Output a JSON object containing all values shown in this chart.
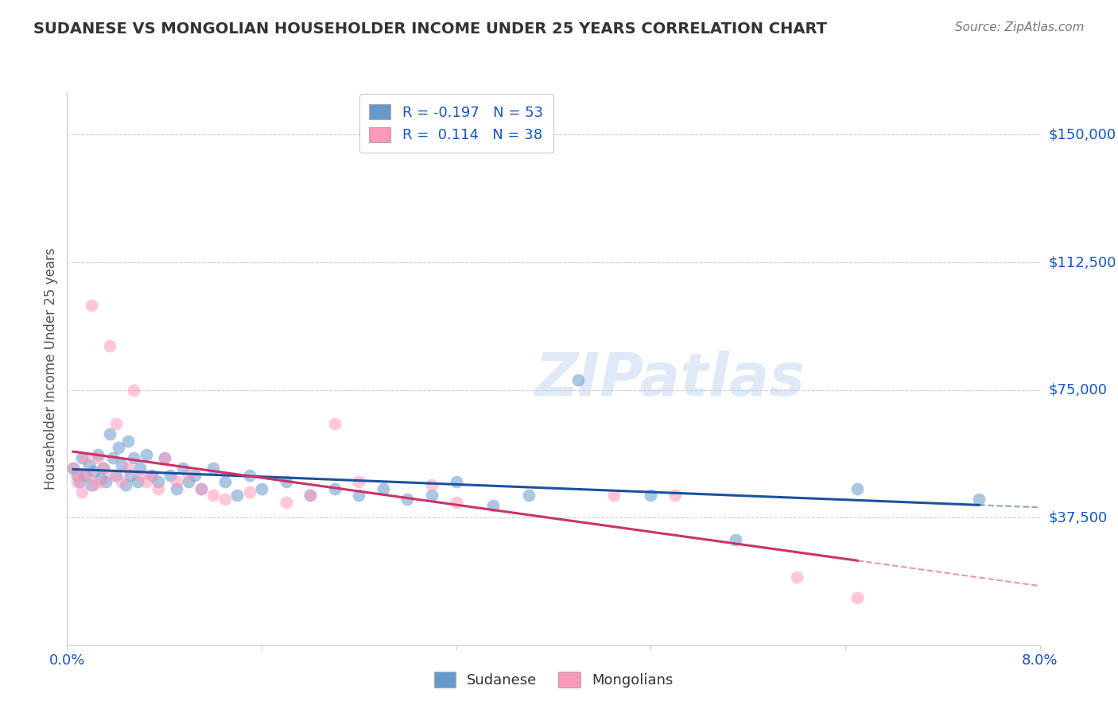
{
  "title": "SUDANESE VS MONGOLIAN HOUSEHOLDER INCOME UNDER 25 YEARS CORRELATION CHART",
  "source": "Source: ZipAtlas.com",
  "ylabel": "Householder Income Under 25 years",
  "background_color": "#ffffff",
  "watermark": "ZIPatlas",
  "legend": {
    "sudanese_label": "Sudanese",
    "mongolian_label": "Mongolians",
    "r_sudanese": -0.197,
    "n_sudanese": 53,
    "r_mongolian": 0.114,
    "n_mongolian": 38
  },
  "x_lim": [
    0.0,
    8.0
  ],
  "y_lim": [
    0,
    162500
  ],
  "y_ticks": [
    37500,
    75000,
    112500,
    150000
  ],
  "y_tick_labels": [
    "$37,500",
    "$75,000",
    "$112,500",
    "$150,000"
  ],
  "sudanese_color": "#6699cc",
  "mongolian_color": "#ff99bb",
  "sudanese_line_color": "#1a52a0",
  "mongolian_line_color": "#cc3366",
  "grid_color": "#cccccc",
  "title_color": "#333333",
  "axis_label_color": "#1155cc",
  "sudanese_x": [
    0.05,
    0.08,
    0.1,
    0.12,
    0.15,
    0.18,
    0.2,
    0.22,
    0.25,
    0.28,
    0.3,
    0.32,
    0.35,
    0.38,
    0.4,
    0.42,
    0.45,
    0.48,
    0.5,
    0.52,
    0.55,
    0.58,
    0.6,
    0.65,
    0.7,
    0.75,
    0.8,
    0.85,
    0.9,
    0.95,
    1.0,
    1.05,
    1.1,
    1.2,
    1.3,
    1.4,
    1.5,
    1.6,
    1.8,
    2.0,
    2.2,
    2.4,
    2.6,
    2.8,
    3.0,
    3.2,
    3.5,
    3.8,
    4.2,
    4.8,
    5.5,
    6.5,
    7.5
  ],
  "sudanese_y": [
    52000,
    50000,
    48000,
    55000,
    50000,
    53000,
    47000,
    51000,
    56000,
    49000,
    52000,
    48000,
    62000,
    55000,
    50000,
    58000,
    53000,
    47000,
    60000,
    50000,
    55000,
    48000,
    52000,
    56000,
    50000,
    48000,
    55000,
    50000,
    46000,
    52000,
    48000,
    50000,
    46000,
    52000,
    48000,
    44000,
    50000,
    46000,
    48000,
    44000,
    46000,
    44000,
    46000,
    43000,
    44000,
    48000,
    41000,
    44000,
    78000,
    44000,
    31000,
    46000,
    43000
  ],
  "mongolian_x": [
    0.05,
    0.08,
    0.1,
    0.12,
    0.15,
    0.18,
    0.2,
    0.22,
    0.25,
    0.28,
    0.3,
    0.35,
    0.38,
    0.4,
    0.45,
    0.5,
    0.55,
    0.6,
    0.65,
    0.7,
    0.75,
    0.8,
    0.9,
    1.0,
    1.1,
    1.2,
    1.3,
    1.5,
    1.8,
    2.0,
    2.2,
    2.4,
    3.0,
    3.2,
    4.5,
    5.0,
    6.0,
    6.5
  ],
  "mongolian_y": [
    52000,
    48000,
    50000,
    45000,
    55000,
    50000,
    100000,
    47000,
    55000,
    48000,
    52000,
    88000,
    50000,
    65000,
    48000,
    52000,
    75000,
    50000,
    48000,
    50000,
    46000,
    55000,
    48000,
    50000,
    46000,
    44000,
    43000,
    45000,
    42000,
    44000,
    65000,
    48000,
    47000,
    42000,
    44000,
    44000,
    20000,
    14000
  ]
}
